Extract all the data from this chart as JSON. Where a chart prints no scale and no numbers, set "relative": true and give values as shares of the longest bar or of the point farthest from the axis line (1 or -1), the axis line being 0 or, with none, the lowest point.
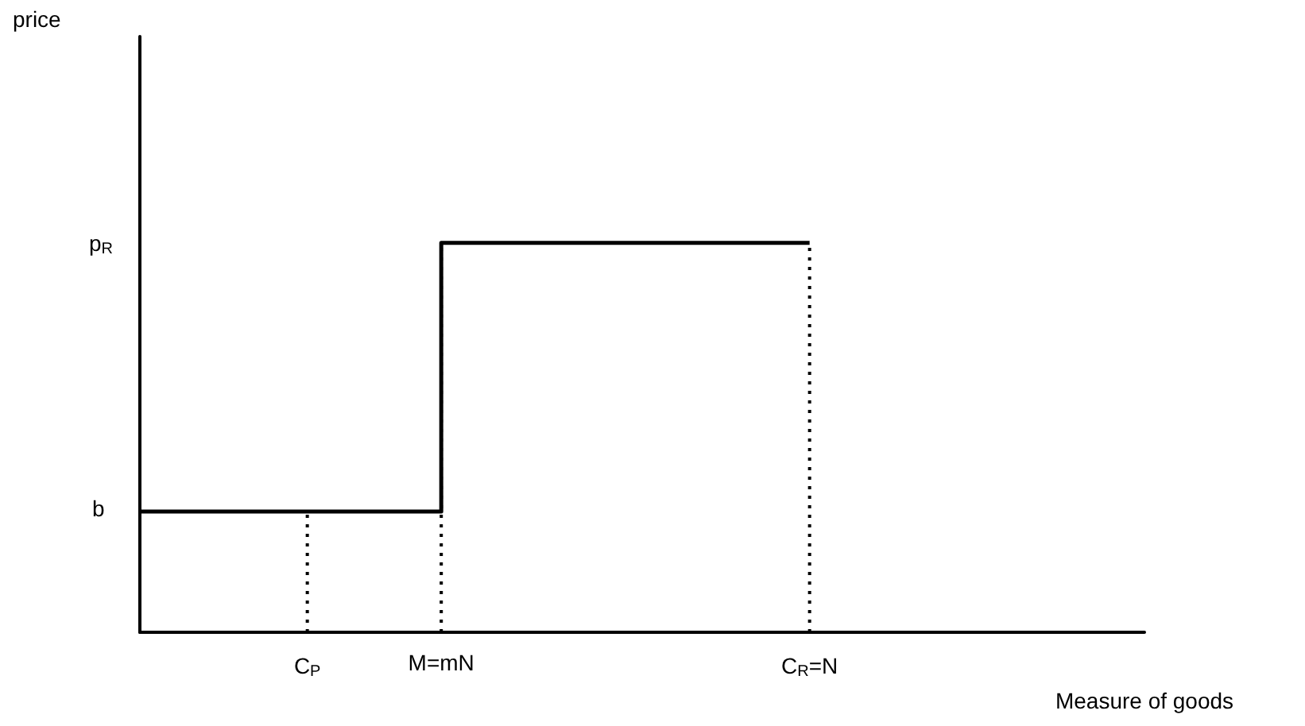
{
  "chart_data": {
    "type": "step",
    "xlabel": "Measure of goods",
    "relative": true,
    "categories": [
      null,
      null,
      null,
      null,
      null,
      "C$_{P}$",
      null,
      null,
      null,
      "M=mN",
      null,
      null,
      null,
      null,
      null,
      null,
      null,
      null,
      null,
      null,
      "C$_{R}$=N",
      null,
      null,
      null,
      null,
      null,
      null,
      null,
      null,
      null,
      null
    ],
    "series": [
      {
        "color": "#000000",
        "values": [
          0.31,
          0.31,
          0.31,
          0.31,
          0.31,
          0.31,
          0.31,
          0.31,
          0.31,
          1,
          1,
          1,
          1,
          1,
          1,
          1,
          1,
          1,
          1,
          1,
          1,
          null,
          null,
          null,
          null,
          null,
          null,
          null,
          null,
          null,
          null
        ]
      }
    ],
    "ref_lines": [
      {
        "axis": "x",
        "value": "C$_{P}$",
        "line_style": "dotted"
      },
      {
        "axis": "x",
        "value": "M=mN",
        "line_style": "dotted"
      },
      {
        "axis": "x",
        "value": "C$_{R}$=N",
        "line_style": "dotted"
      }
    ],
    "annotations": [
      "price",
      "b",
      "p$_{R}$"
    ],
    "grid": false,
    "marker": "none",
    "line_style": "solid"
  }
}
